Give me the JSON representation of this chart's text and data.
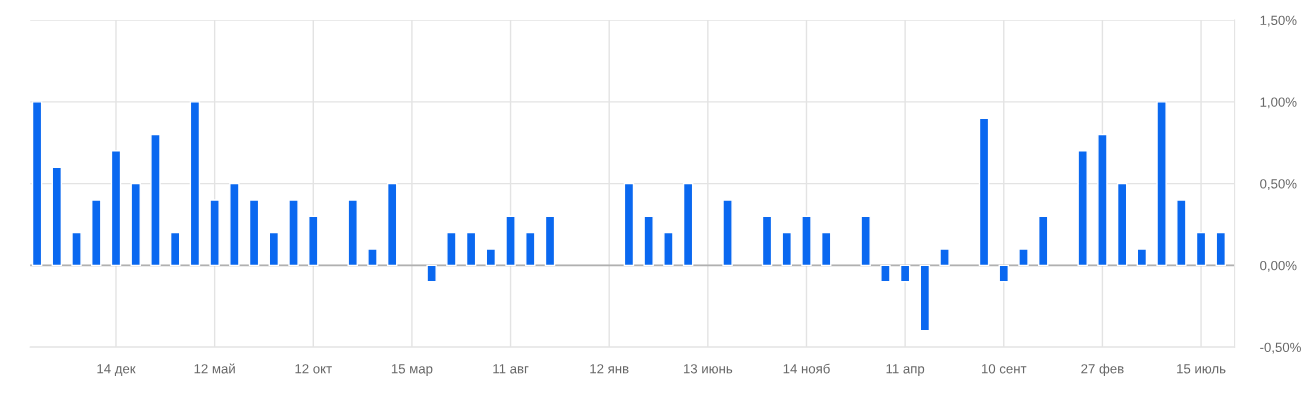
{
  "chart_data": {
    "type": "bar",
    "categories": [
      null,
      null,
      null,
      null,
      "14 дек",
      null,
      null,
      null,
      null,
      "12 май",
      null,
      null,
      null,
      null,
      "12 окт",
      null,
      null,
      null,
      null,
      "15 мар",
      null,
      null,
      null,
      null,
      "11 авг",
      null,
      null,
      null,
      null,
      "12 янв",
      null,
      null,
      null,
      null,
      "13 июнь",
      null,
      null,
      null,
      null,
      "14 нояб",
      null,
      null,
      null,
      null,
      "11 апр",
      null,
      null,
      null,
      null,
      "10 сент",
      null,
      null,
      null,
      null,
      "27 фев",
      null,
      null,
      null,
      null,
      "15 июль",
      null
    ],
    "values": [
      1.0,
      0.6,
      0.2,
      0.4,
      0.7,
      0.5,
      0.8,
      0.2,
      1.0,
      0.4,
      0.5,
      0.4,
      0.2,
      0.4,
      0.3,
      null,
      0.4,
      0.1,
      0.5,
      null,
      -0.1,
      0.2,
      0.2,
      0.1,
      0.3,
      0.2,
      0.3,
      null,
      null,
      null,
      0.5,
      0.3,
      0.2,
      0.5,
      null,
      0.4,
      null,
      0.3,
      0.2,
      0.3,
      0.2,
      null,
      0.3,
      -0.1,
      -0.1,
      -0.4,
      0.1,
      null,
      0.9,
      -0.1,
      0.1,
      0.3,
      null,
      0.7,
      0.8,
      0.5,
      0.1,
      1.0,
      0.4,
      0.2,
      0.2
    ],
    "color": "#0a68f0",
    "ylim": [
      -0.5,
      1.5
    ],
    "yticks": [
      {
        "value": -0.5,
        "label": "-0,50%"
      },
      {
        "value": 0,
        "label": "0,00%"
      },
      {
        "value": 0.5,
        "label": "0,50%"
      },
      {
        "value": 1.0,
        "label": "1,00%"
      },
      {
        "value": 1.5,
        "label": "1,50%"
      }
    ],
    "grid": true,
    "ref_lines": [
      {
        "axis": "y",
        "value": 0,
        "color": "#b0b0b0"
      }
    ]
  }
}
